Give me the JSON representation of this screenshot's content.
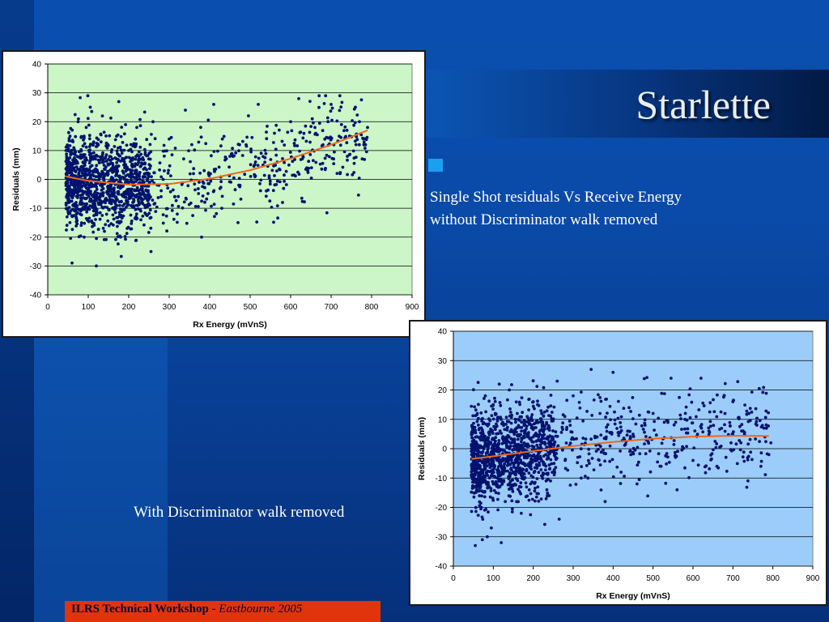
{
  "slide": {
    "title": "Starlette",
    "bullet_line1": "Single Shot residuals Vs Receive Energy",
    "bullet_line2": "without Discriminator walk removed",
    "caption2": "With Discriminator walk removed",
    "footer_bold": "ILRS Technical Workshop - ",
    "footer_italic": "Eastbourne 2005"
  },
  "chart_data": [
    {
      "type": "scatter",
      "title": "",
      "xlabel": "Rx Energy (mVnS)",
      "ylabel": "Residuals (mm)",
      "xlim": [
        0,
        900
      ],
      "ylim": [
        -40,
        40
      ],
      "xticks": [
        0,
        100,
        200,
        300,
        400,
        500,
        600,
        700,
        800,
        900
      ],
      "yticks": [
        -40,
        -30,
        -20,
        -10,
        0,
        10,
        20,
        30,
        40
      ],
      "grid": "horizontal",
      "plot_background": "#ccf5c8",
      "point_color": "#00126e",
      "trend_color": "#f0651a",
      "points_note": "approx. 1500 points, dense at 50-250, spread ±20 mm",
      "points": [
        [
          45,
          10
        ],
        [
          50,
          -3
        ],
        [
          55,
          15
        ],
        [
          60,
          -29
        ],
        [
          65,
          6
        ],
        [
          70,
          -8
        ],
        [
          75,
          20
        ],
        [
          80,
          -12
        ],
        [
          85,
          3
        ],
        [
          90,
          -20
        ],
        [
          95,
          18
        ],
        [
          100,
          -5
        ],
        [
          105,
          25
        ],
        [
          110,
          -15
        ],
        [
          115,
          8
        ],
        [
          120,
          -30
        ],
        [
          125,
          12
        ],
        [
          130,
          -2
        ],
        [
          135,
          22
        ],
        [
          140,
          -18
        ],
        [
          150,
          5
        ],
        [
          160,
          -10
        ],
        [
          170,
          15
        ],
        [
          180,
          -20
        ],
        [
          190,
          0
        ],
        [
          200,
          10
        ],
        [
          210,
          -8
        ],
        [
          220,
          18
        ],
        [
          230,
          -14
        ],
        [
          240,
          4
        ],
        [
          255,
          -25
        ],
        [
          260,
          20
        ],
        [
          280,
          -6
        ],
        [
          300,
          14
        ],
        [
          320,
          -12
        ],
        [
          340,
          24
        ],
        [
          360,
          2
        ],
        [
          380,
          -20
        ],
        [
          410,
          26
        ],
        [
          430,
          -10
        ],
        [
          450,
          8
        ],
        [
          470,
          -15
        ],
        [
          490,
          12
        ],
        [
          520,
          26
        ],
        [
          540,
          -4
        ],
        [
          560,
          16
        ],
        [
          580,
          -8
        ],
        [
          600,
          20
        ],
        [
          620,
          28
        ],
        [
          640,
          4
        ],
        [
          660,
          18
        ],
        [
          680,
          12
        ],
        [
          700,
          26
        ],
        [
          720,
          15
        ],
        [
          740,
          8
        ],
        [
          760,
          25
        ],
        [
          770,
          20
        ],
        [
          780,
          14
        ],
        [
          790,
          18
        ],
        [
          785,
          12
        ]
      ],
      "trend": {
        "x": [
          45,
          100,
          200,
          300,
          400,
          500,
          600,
          700,
          790
        ],
        "y": [
          1,
          -0.5,
          -1.8,
          -1.6,
          0.2,
          3.2,
          7.2,
          12,
          17
        ]
      }
    },
    {
      "type": "scatter",
      "title": "",
      "xlabel": "Rx Energy (mVnS)",
      "ylabel": "Residuals (mm)",
      "xlim": [
        0,
        900
      ],
      "ylim": [
        -40,
        40
      ],
      "xticks": [
        0,
        100,
        200,
        300,
        400,
        500,
        600,
        700,
        800,
        900
      ],
      "yticks": [
        -40,
        -30,
        -20,
        -10,
        0,
        10,
        20,
        30,
        40
      ],
      "grid": "horizontal",
      "plot_background": "#9ccdfa",
      "point_color": "#00126e",
      "trend_color": "#f0651a",
      "points_note": "approx. 1500 points, dense at 50-250, spread ±20 mm",
      "points": [
        [
          50,
          -5
        ],
        [
          55,
          -33
        ],
        [
          60,
          12
        ],
        [
          70,
          -20
        ],
        [
          80,
          18
        ],
        [
          85,
          -30
        ],
        [
          90,
          5
        ],
        [
          95,
          -27
        ],
        [
          100,
          15
        ],
        [
          110,
          -10
        ],
        [
          115,
          22
        ],
        [
          120,
          -32
        ],
        [
          125,
          2
        ],
        [
          130,
          -18
        ],
        [
          140,
          20
        ],
        [
          150,
          -8
        ],
        [
          160,
          12
        ],
        [
          170,
          -22
        ],
        [
          180,
          6
        ],
        [
          190,
          -14
        ],
        [
          200,
          16
        ],
        [
          210,
          -6
        ],
        [
          220,
          10
        ],
        [
          240,
          -16
        ],
        [
          260,
          23
        ],
        [
          265,
          -24
        ],
        [
          280,
          -4
        ],
        [
          300,
          18
        ],
        [
          320,
          -10
        ],
        [
          345,
          27
        ],
        [
          360,
          4
        ],
        [
          380,
          -18
        ],
        [
          400,
          26
        ],
        [
          420,
          -8
        ],
        [
          440,
          14
        ],
        [
          460,
          -12
        ],
        [
          480,
          8
        ],
        [
          500,
          12
        ],
        [
          520,
          -6
        ],
        [
          545,
          24
        ],
        [
          560,
          -14
        ],
        [
          580,
          10
        ],
        [
          600,
          -4
        ],
        [
          620,
          24
        ],
        [
          640,
          6
        ],
        [
          660,
          -6
        ],
        [
          680,
          12
        ],
        [
          700,
          16
        ],
        [
          720,
          2
        ],
        [
          740,
          12
        ],
        [
          760,
          8
        ],
        [
          780,
          4
        ],
        [
          790,
          -2
        ],
        [
          795,
          2
        ],
        [
          770,
          -6
        ]
      ],
      "trend": {
        "x": [
          45,
          100,
          200,
          300,
          400,
          500,
          600,
          700,
          790
        ],
        "y": [
          -3.5,
          -2.6,
          -0.8,
          0.9,
          2.3,
          3.4,
          4.1,
          4.4,
          4.3
        ]
      }
    }
  ]
}
